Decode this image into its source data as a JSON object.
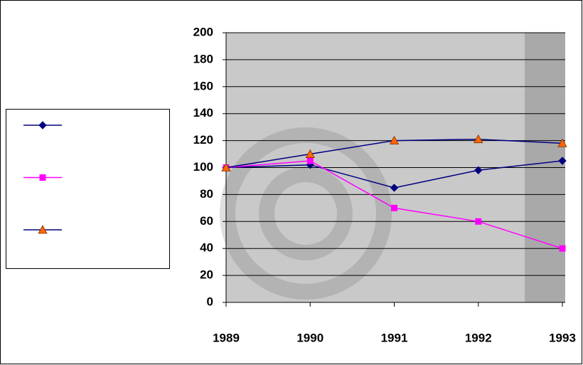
{
  "chart_data": {
    "type": "line",
    "categories": [
      "1989",
      "1990",
      "1991",
      "1992",
      "1993"
    ],
    "series": [
      {
        "color": "#000080",
        "marker": "diamond",
        "marker_color": "#000080",
        "values": [
          100,
          102,
          85,
          98,
          105
        ]
      },
      {
        "color": "#ff00ff",
        "marker": "square",
        "marker_color": "#ff00ff",
        "values": [
          100,
          105,
          70,
          60,
          40
        ]
      },
      {
        "color": "#000080",
        "marker": "triangle",
        "marker_color": "#ff6600",
        "values": [
          100,
          110,
          120,
          121,
          118
        ]
      }
    ],
    "ylim": [
      0,
      200
    ],
    "yticks": [
      0,
      20,
      40,
      60,
      80,
      100,
      120,
      140,
      160,
      180,
      200
    ],
    "grid": true,
    "legend": "left"
  }
}
